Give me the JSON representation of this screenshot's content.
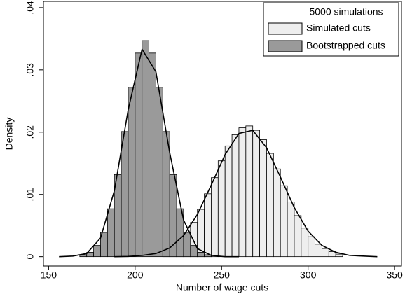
{
  "chart_data": {
    "type": "histogram",
    "x_label": "Number of wage cuts",
    "y_label": "Density",
    "xlim": [
      147,
      354
    ],
    "xticks": [
      150,
      200,
      250,
      300,
      350
    ],
    "ylim": [
      -0.0015,
      0.041
    ],
    "yticks": [
      0,
      {
        "value": 0.01,
        "label": ".01"
      },
      {
        "value": 0.02,
        "label": ".02"
      },
      {
        "value": 0.03,
        "label": ".03"
      },
      {
        "value": 0.04,
        "label": ".04"
      }
    ],
    "legend_title": "5000 simulations",
    "legend_position": "upper right",
    "series": [
      {
        "name": "Simulated cuts",
        "color": "#eeeeee",
        "bins": [
          216,
          220,
          224,
          228,
          232,
          236,
          240,
          244,
          248,
          252,
          256,
          260,
          264,
          268,
          272,
          276,
          280,
          284,
          288,
          292,
          296,
          300,
          304,
          308,
          312,
          316,
          320
        ],
        "values": [
          0.001,
          0.0016,
          0.0025,
          0.0038,
          0.0055,
          0.0076,
          0.0101,
          0.0127,
          0.0154,
          0.0178,
          0.0196,
          0.0207,
          0.021,
          0.0203,
          0.0188,
          0.0166,
          0.0141,
          0.0114,
          0.0088,
          0.0066,
          0.0046,
          0.0032,
          0.002,
          0.0013,
          0.0008,
          0.0004
        ]
      },
      {
        "name": "Bootstrapped cuts",
        "color": "#9a9a9a",
        "bins": [
          168,
          172,
          176,
          180,
          184,
          188,
          192,
          196,
          200,
          204,
          208,
          212,
          216,
          220,
          224,
          228,
          232,
          236,
          240,
          244
        ],
        "values": [
          0.0003,
          0.0007,
          0.0018,
          0.0039,
          0.0077,
          0.0132,
          0.0201,
          0.0272,
          0.0327,
          0.0347,
          0.0327,
          0.0272,
          0.0201,
          0.0132,
          0.0077,
          0.0039,
          0.0018,
          0.0007,
          0.0003
        ]
      }
    ],
    "density_curves": [
      {
        "color": "#000000",
        "x": [
          156,
          164,
          172,
          180,
          188,
          196,
          204,
          212,
          220,
          228,
          236,
          244,
          252,
          260
        ],
        "values": [
          0,
          0.0001,
          0.0005,
          0.003,
          0.0106,
          0.0236,
          0.0333,
          0.0297,
          0.0167,
          0.0059,
          0.0013,
          0.0002,
          0,
          0
        ]
      },
      {
        "color": "#000000",
        "x": [
          188,
          196,
          204,
          212,
          220,
          228,
          236,
          244,
          252,
          260,
          268,
          276,
          284,
          292,
          300,
          308,
          316,
          324,
          332,
          340
        ],
        "values": [
          0,
          4e-05,
          0.0002,
          0.0005,
          0.0014,
          0.0034,
          0.0068,
          0.0115,
          0.0164,
          0.0198,
          0.0203,
          0.0175,
          0.0128,
          0.0079,
          0.0041,
          0.0018,
          0.0007,
          0.0002,
          0.0001,
          0
        ]
      }
    ]
  }
}
